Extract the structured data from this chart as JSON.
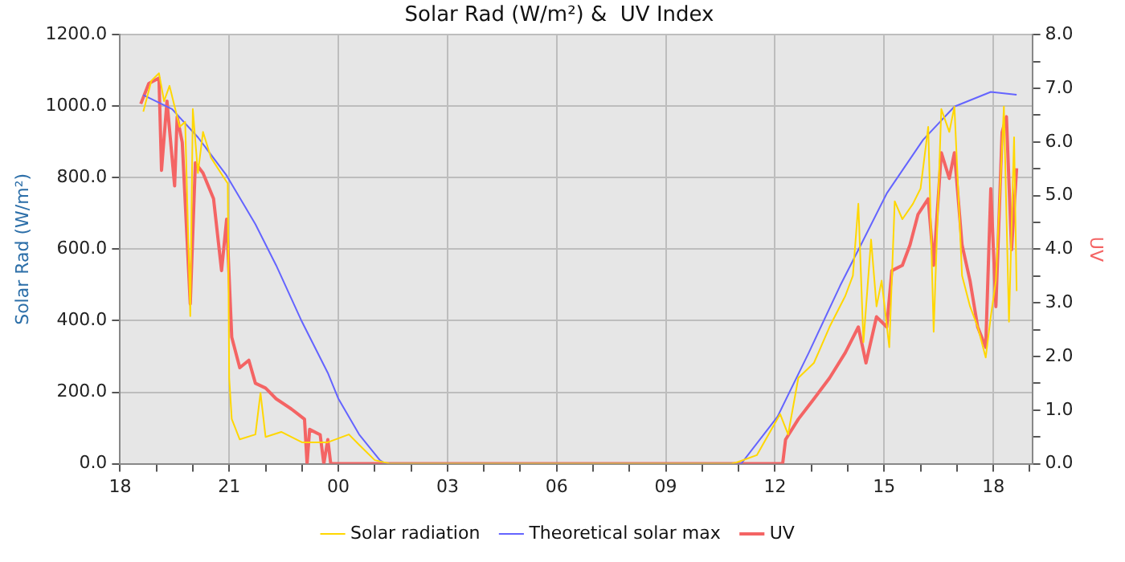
{
  "chart_data": {
    "type": "line",
    "title": "Solar Rad (W/m²) &  UV Index",
    "ylabel": "Solar Rad (W/m²)",
    "y2label": "UV",
    "xlim": [
      18,
      43.07
    ],
    "xticks": [
      {
        "value": 18,
        "label": "18"
      },
      {
        "value": 19,
        "label": null
      },
      {
        "value": 20,
        "label": null
      },
      {
        "value": 21,
        "label": "21"
      },
      {
        "value": 22,
        "label": null
      },
      {
        "value": 23,
        "label": null
      },
      {
        "value": 24,
        "label": "00"
      },
      {
        "value": 25,
        "label": null
      },
      {
        "value": 26,
        "label": null
      },
      {
        "value": 27,
        "label": "03"
      },
      {
        "value": 28,
        "label": null
      },
      {
        "value": 29,
        "label": null
      },
      {
        "value": 30,
        "label": "06"
      },
      {
        "value": 31,
        "label": null
      },
      {
        "value": 32,
        "label": null
      },
      {
        "value": 33,
        "label": "09"
      },
      {
        "value": 34,
        "label": null
      },
      {
        "value": 35,
        "label": null
      },
      {
        "value": 36,
        "label": "12"
      },
      {
        "value": 37,
        "label": null
      },
      {
        "value": 38,
        "label": null
      },
      {
        "value": 39,
        "label": "15"
      },
      {
        "value": 40,
        "label": null
      },
      {
        "value": 41,
        "label": null
      },
      {
        "value": 42,
        "label": "18"
      },
      {
        "value": 43,
        "label": null
      }
    ],
    "ylim": [
      0,
      1200
    ],
    "yticks": [
      {
        "value": 0,
        "label": "0.0"
      },
      {
        "value": 200,
        "label": "200.0"
      },
      {
        "value": 400,
        "label": "400.0"
      },
      {
        "value": 600,
        "label": "600.0"
      },
      {
        "value": 800,
        "label": "800.0"
      },
      {
        "value": 1000,
        "label": "1000.0"
      },
      {
        "value": 1200,
        "label": "1200.0"
      }
    ],
    "y2lim": [
      0,
      8
    ],
    "y2ticks": [
      {
        "value": 0,
        "label": "0.0"
      },
      {
        "value": 0.5,
        "label": null
      },
      {
        "value": 1,
        "label": "1.0"
      },
      {
        "value": 1.5,
        "label": null
      },
      {
        "value": 2,
        "label": "2.0"
      },
      {
        "value": 2.5,
        "label": null
      },
      {
        "value": 3,
        "label": "3.0"
      },
      {
        "value": 3.5,
        "label": null
      },
      {
        "value": 4,
        "label": "4.0"
      },
      {
        "value": 4.5,
        "label": null
      },
      {
        "value": 5,
        "label": "5.0"
      },
      {
        "value": 5.5,
        "label": null
      },
      {
        "value": 6,
        "label": "6.0"
      },
      {
        "value": 6.5,
        "label": null
      },
      {
        "value": 7,
        "label": "7.0"
      },
      {
        "value": 7.5,
        "label": null
      },
      {
        "value": 8,
        "label": "8.0"
      }
    ],
    "grid": true,
    "legend": "bottom",
    "marker": "none",
    "series": [
      {
        "name": "Solar radiation",
        "color": "#ffd700",
        "x": [
          18.64,
          18.86,
          19.07,
          19.21,
          19.36,
          19.5,
          19.64,
          19.79,
          19.93,
          20.0,
          20.14,
          20.28,
          20.5,
          20.86,
          20.96,
          21.0,
          21.07,
          21.29,
          21.72,
          21.86,
          22.0,
          22.43,
          23.0,
          23.71,
          24.29,
          24.57,
          25.0,
          25.43,
          34.8,
          34.93,
          35.5,
          36.14,
          36.36,
          36.64,
          37.07,
          37.5,
          37.93,
          38.14,
          38.29,
          38.43,
          38.64,
          38.79,
          38.93,
          39.14,
          39.29,
          39.5,
          39.79,
          40.0,
          40.21,
          40.36,
          40.57,
          40.79,
          40.93,
          41.14,
          41.36,
          41.57,
          41.79,
          41.93,
          42.07,
          42.29,
          42.43,
          42.57,
          42.64
        ],
        "values": [
          985,
          1071,
          1092,
          1014,
          1057,
          999,
          942,
          956,
          413,
          992,
          813,
          928,
          856,
          799,
          784,
          240,
          125,
          68,
          82,
          198,
          75,
          89,
          60,
          60,
          82,
          53,
          10,
          0,
          0,
          3,
          24,
          139,
          82,
          240,
          282,
          383,
          469,
          526,
          727,
          340,
          627,
          440,
          512,
          326,
          734,
          684,
          727,
          770,
          942,
          369,
          992,
          928,
          999,
          526,
          440,
          383,
          297,
          412,
          512,
          999,
          397,
          913,
          483
        ]
      },
      {
        "name": "Theoretical solar max",
        "color": "#6464ff",
        "x": [
          18.64,
          19.43,
          20.14,
          20.93,
          21.72,
          22.29,
          23.0,
          23.71,
          24.0,
          24.57,
          25.14,
          25.29,
          35.07,
          36.07,
          36.93,
          37.79,
          38.36,
          39.07,
          40.07,
          40.93,
          41.93,
          42.64
        ],
        "values": [
          1031,
          992,
          913,
          806,
          670,
          555,
          397,
          254,
          182,
          82,
          10,
          0,
          0,
          132,
          311,
          498,
          612,
          756,
          906,
          999,
          1040,
          1032
        ]
      },
      {
        "name": "UV",
        "color": "#f46464",
        "axis": "y2",
        "x": [
          18.57,
          18.79,
          19.07,
          19.14,
          19.29,
          19.5,
          19.57,
          19.71,
          19.93,
          20.07,
          20.28,
          20.57,
          20.79,
          20.93,
          21.07,
          21.29,
          21.54,
          21.72,
          22.0,
          22.29,
          22.71,
          23.07,
          23.14,
          23.21,
          23.5,
          23.6,
          23.71,
          23.79,
          36.21,
          36.29,
          36.64,
          37.07,
          37.5,
          37.93,
          38.29,
          38.5,
          38.79,
          39.07,
          39.21,
          39.5,
          39.71,
          39.93,
          40.21,
          40.36,
          40.57,
          40.79,
          40.93,
          41.14,
          41.36,
          41.57,
          41.79,
          41.93,
          42.07,
          42.24,
          42.36,
          42.5,
          42.64
        ],
        "values": [
          6.71,
          7.09,
          7.19,
          5.47,
          6.76,
          5.18,
          6.47,
          5.99,
          2.98,
          5.61,
          5.42,
          4.94,
          3.6,
          4.56,
          2.36,
          1.79,
          1.93,
          1.5,
          1.41,
          1.21,
          1.02,
          0.83,
          0,
          0.64,
          0.54,
          0,
          0.45,
          0,
          0,
          0.45,
          0.83,
          1.21,
          1.6,
          2.07,
          2.55,
          1.88,
          2.74,
          2.55,
          3.6,
          3.7,
          4.08,
          4.65,
          4.94,
          3.7,
          5.8,
          5.32,
          5.8,
          4.08,
          3.41,
          2.55,
          2.17,
          5.13,
          2.93,
          6.18,
          6.47,
          3.99,
          5.51
        ]
      }
    ]
  }
}
